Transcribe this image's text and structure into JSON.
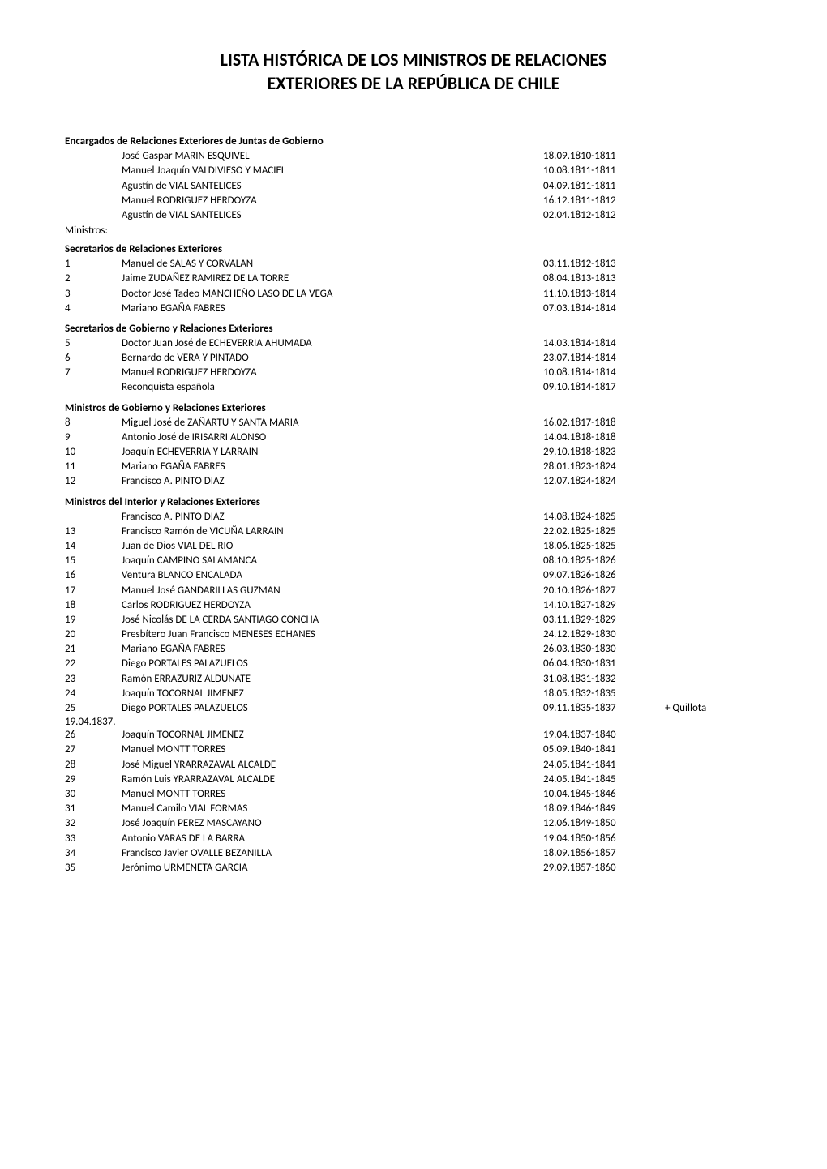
{
  "colors": {
    "text": "#000000",
    "background": "#ffffff"
  },
  "typography": {
    "font_family": "Calibri, Arial, sans-serif",
    "title_fontsize": 22,
    "body_fontsize": 13,
    "title_weight": "bold",
    "section_weight": "bold"
  },
  "title_line1": "LISTA HISTÓRICA DE LOS MINISTROS DE RELACIONES",
  "title_line2": "EXTERIORES DE LA REPÚBLICA DE CHILE",
  "sections": [
    {
      "header": "Encargados de Relaciones Exteriores de Juntas de Gobierno",
      "items": [
        {
          "num": "",
          "name": "José Gaspar MARIN ESQUIVEL",
          "date": "18.09.1810-1811"
        },
        {
          "num": "",
          "name": "Manuel Joaquín VALDIVIESO Y MACIEL",
          "date": "10.08.1811-1811"
        },
        {
          "num": "",
          "name": "Agustín de VIAL SANTELICES",
          "date": "04.09.1811-1811"
        },
        {
          "num": "",
          "name": "Manuel RODRIGUEZ HERDOYZA",
          "date": "16.12.1811-1812"
        },
        {
          "num": "",
          "name": "Agustín de VIAL SANTELICES",
          "date": "02.04.1812-1812"
        }
      ]
    }
  ],
  "ministros_label": "Ministros:",
  "section2_header": "Secretarios de Relaciones Exteriores",
  "section2_items": [
    {
      "num": "1",
      "name": "Manuel de SALAS Y CORVALAN",
      "date": "03.11.1812-1813"
    },
    {
      "num": "2",
      "name": "Jaime ZUDAÑEZ RAMIREZ DE LA TORRE",
      "date": "08.04.1813-1813"
    },
    {
      "num": "3",
      "name": "Doctor José Tadeo MANCHEÑO LASO DE LA VEGA",
      "date": "11.10.1813-1814"
    },
    {
      "num": "4",
      "name": "Mariano EGAÑA FABRES",
      "date": "07.03.1814-1814"
    }
  ],
  "section3_header": "Secretarios de Gobierno y Relaciones Exteriores",
  "section3_items": [
    {
      "num": "5",
      "name": "Doctor Juan José de ECHEVERRIA AHUMADA",
      "date": "14.03.1814-1814"
    },
    {
      "num": "6",
      "name": "Bernardo de VERA Y PINTADO",
      "date": "23.07.1814-1814"
    },
    {
      "num": "7",
      "name": "Manuel RODRIGUEZ HERDOYZA",
      "date": "10.08.1814-1814"
    },
    {
      "num": "",
      "name": "Reconquista española",
      "date": "09.10.1814-1817"
    }
  ],
  "section4_header": "Ministros de Gobierno y Relaciones Exteriores",
  "section4_items": [
    {
      "num": "8",
      "name": "Miguel José de ZAÑARTU Y SANTA MARIA",
      "date": "16.02.1817-1818"
    },
    {
      "num": "9",
      "name": "Antonio José de IRISARRI ALONSO",
      "date": "14.04.1818-1818"
    },
    {
      "num": "10",
      "name": "Joaquín ECHEVERRIA Y LARRAIN",
      "date": "29.10.1818-1823"
    },
    {
      "num": "11",
      "name": "Mariano EGAÑA FABRES",
      "date": "28.01.1823-1824"
    },
    {
      "num": "12",
      "name": "Francisco A. PINTO DIAZ",
      "date": "12.07.1824-1824"
    }
  ],
  "section5_header": "Ministros del Interior y Relaciones Exteriores",
  "section5_items": [
    {
      "num": "",
      "name": "Francisco A. PINTO DIAZ",
      "date": "14.08.1824-1825"
    },
    {
      "num": "13",
      "name": "Francisco Ramón de VICUÑA LARRAIN",
      "date": "22.02.1825-1825"
    },
    {
      "num": "14",
      "name": "Juan de Dios VIAL DEL RIO",
      "date": "18.06.1825-1825"
    },
    {
      "num": "15",
      "name": "Joaquín CAMPINO SALAMANCA",
      "date": "08.10.1825-1826"
    },
    {
      "num": "16",
      "name": "Ventura BLANCO ENCALADA",
      "date": "09.07.1826-1826"
    },
    {
      "num": "17",
      "name": "Manuel José GANDARILLAS GUZMAN",
      "date": "20.10.1826-1827"
    },
    {
      "num": "18",
      "name": "Carlos RODRIGUEZ HERDOYZA",
      "date": "14.10.1827-1829"
    },
    {
      "num": "19",
      "name": "José Nicolás DE LA CERDA SANTIAGO CONCHA",
      "date": "03.11.1829-1829"
    },
    {
      "num": "20",
      "name": "Presbítero Juan Francisco MENESES ECHANES",
      "date": "24.12.1829-1830"
    },
    {
      "num": "21",
      "name": "Mariano EGAÑA FABRES",
      "date": "26.03.1830-1830"
    },
    {
      "num": "22",
      "name": "Diego PORTALES PALAZUELOS",
      "date": "06.04.1830-1831"
    },
    {
      "num": "23",
      "name": "Ramón ERRAZURIZ ALDUNATE",
      "date": "31.08.1831-1832"
    },
    {
      "num": "24",
      "name": "Joaquín TOCORNAL JIMENEZ",
      "date": "18.05.1832-1835"
    },
    {
      "num": "25",
      "name": "Diego PORTALES PALAZUELOS",
      "date": "09.11.1835-1837",
      "extra": "+    Quillota"
    }
  ],
  "continuation_date": "19.04.1837.",
  "section5_items2": [
    {
      "num": "26",
      "name": "Joaquín TOCORNAL JIMENEZ",
      "date": "19.04.1837-1840"
    },
    {
      "num": "27",
      "name": "Manuel MONTT TORRES",
      "date": "05.09.1840-1841"
    },
    {
      "num": "28",
      "name": "José Miguel YRARRAZAVAL ALCALDE",
      "date": "24.05.1841-1841"
    },
    {
      "num": "29",
      "name": "Ramón Luis YRARRAZAVAL ALCALDE",
      "date": "24.05.1841-1845"
    },
    {
      "num": "30",
      "name": "Manuel MONTT TORRES",
      "date": "10.04.1845-1846"
    },
    {
      "num": "31",
      "name": "Manuel Camilo VIAL FORMAS",
      "date": "18.09.1846-1849"
    },
    {
      "num": "32",
      "name": "José Joaquín PEREZ MASCAYANO",
      "date": "12.06.1849-1850"
    },
    {
      "num": "33",
      "name": "Antonio VARAS DE LA BARRA",
      "date": "19.04.1850-1856"
    },
    {
      "num": "34",
      "name": "Francisco Javier OVALLE BEZANILLA",
      "date": "18.09.1856-1857"
    },
    {
      "num": "35",
      "name": "Jerónimo URMENETA GARCIA",
      "date": "29.09.1857-1860"
    }
  ]
}
